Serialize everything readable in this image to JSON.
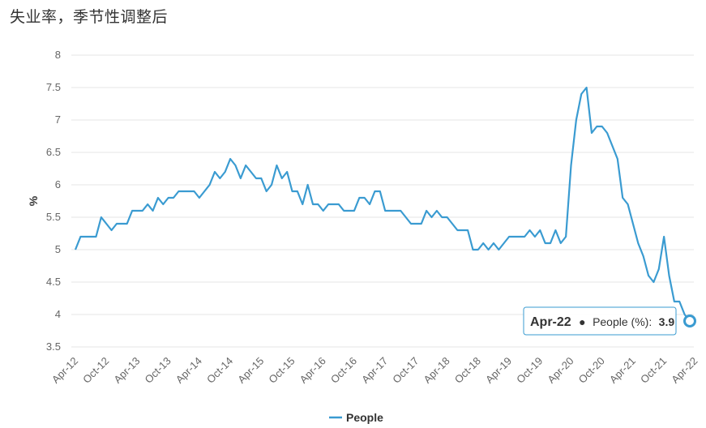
{
  "title": "失业率，季节性调整后",
  "colors": {
    "series": "#3a9bd1",
    "grid": "#e6e6e6",
    "tooltip_border": "#3a9bd1"
  },
  "legend_position": "bottom-center",
  "tooltip": {
    "period": "Apr-22",
    "label": "People (%):",
    "value": "3.9"
  },
  "chart_data": {
    "type": "line",
    "ylabel": "%",
    "xlabel": "",
    "ylim": [
      3.5,
      8
    ],
    "yticks": [
      "3.5",
      "4",
      "4.5",
      "5",
      "5.5",
      "6",
      "6.5",
      "7",
      "7.5",
      "8"
    ],
    "xtick_labels": [
      "Apr-12",
      "Oct-12",
      "Apr-13",
      "Oct-13",
      "Apr-14",
      "Oct-14",
      "Apr-15",
      "Oct-15",
      "Apr-16",
      "Oct-16",
      "Apr-17",
      "Oct-17",
      "Apr-18",
      "Oct-18",
      "Apr-19",
      "Oct-19",
      "Apr-20",
      "Oct-20",
      "Apr-21",
      "Oct-21",
      "Apr-22"
    ],
    "grid": true,
    "series": [
      {
        "name": "People",
        "start": "Apr-12",
        "frequency": "monthly",
        "values": [
          5.0,
          5.2,
          5.2,
          5.2,
          5.2,
          5.5,
          5.4,
          5.3,
          5.4,
          5.4,
          5.4,
          5.6,
          5.6,
          5.6,
          5.7,
          5.6,
          5.8,
          5.7,
          5.8,
          5.8,
          5.9,
          5.9,
          5.9,
          5.9,
          5.8,
          5.9,
          6.0,
          6.2,
          6.1,
          6.2,
          6.4,
          6.3,
          6.1,
          6.3,
          6.2,
          6.1,
          6.1,
          5.9,
          6.0,
          6.3,
          6.1,
          6.2,
          5.9,
          5.9,
          5.7,
          6.0,
          5.7,
          5.7,
          5.6,
          5.7,
          5.7,
          5.7,
          5.6,
          5.6,
          5.6,
          5.8,
          5.8,
          5.7,
          5.9,
          5.9,
          5.6,
          5.6,
          5.6,
          5.6,
          5.5,
          5.4,
          5.4,
          5.4,
          5.6,
          5.5,
          5.6,
          5.5,
          5.5,
          5.4,
          5.3,
          5.3,
          5.3,
          5.0,
          5.0,
          5.1,
          5.0,
          5.1,
          5.0,
          5.1,
          5.2,
          5.2,
          5.2,
          5.2,
          5.3,
          5.2,
          5.3,
          5.1,
          5.1,
          5.3,
          5.1,
          5.2,
          6.3,
          7.0,
          7.4,
          7.5,
          6.8,
          6.9,
          6.9,
          6.8,
          6.6,
          6.4,
          5.8,
          5.7,
          5.4,
          5.1,
          4.9,
          4.6,
          4.5,
          4.7,
          5.2,
          4.6,
          4.2,
          4.2,
          4.0,
          3.9
        ]
      }
    ]
  }
}
